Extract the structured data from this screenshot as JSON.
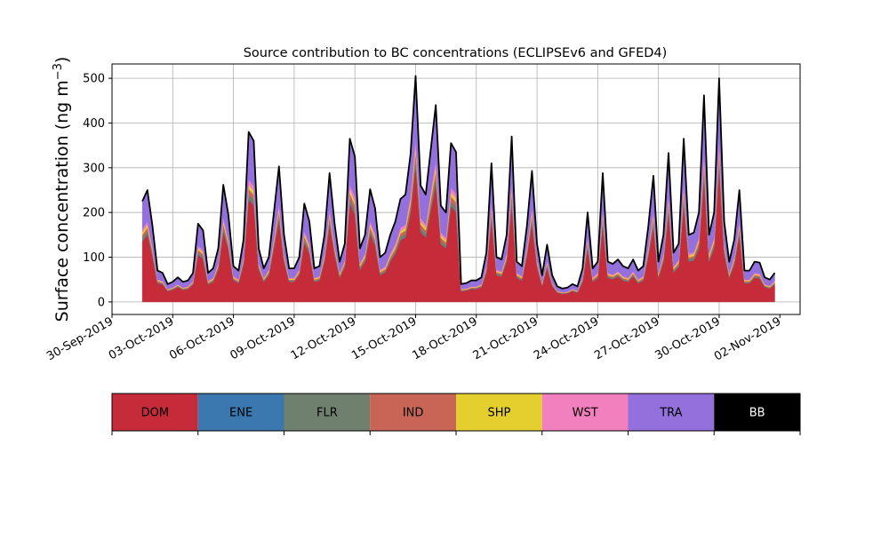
{
  "chart_data": {
    "type": "area",
    "stacked": true,
    "title": "Source contribution to BC concentrations (ECLIPSEv6 and GFED4)",
    "ylabel": "Surface concentration (ng m",
    "ylabel_sup": "−3",
    "ylabel_close": ")",
    "xlabel": "",
    "grid": true,
    "ylim": [
      -28,
      532
    ],
    "xlim": [
      "2019-09-30",
      "2019-11-03"
    ],
    "yticks": [
      0,
      100,
      200,
      300,
      400,
      500
    ],
    "xticks": [
      "30-Sep-2019",
      "03-Oct-2019",
      "06-Oct-2019",
      "09-Oct-2019",
      "12-Oct-2019",
      "15-Oct-2019",
      "18-Oct-2019",
      "21-Oct-2019",
      "24-Oct-2019",
      "27-Oct-2019",
      "30-Oct-2019",
      "02-Nov-2019"
    ],
    "total_points": [
      [
        "2019-10-01T12:00",
        225
      ],
      [
        "2019-10-01T18:00",
        250
      ],
      [
        "2019-10-02T00:00",
        170
      ],
      [
        "2019-10-02T06:00",
        70
      ],
      [
        "2019-10-02T12:00",
        65
      ],
      [
        "2019-10-02T18:00",
        40
      ],
      [
        "2019-10-03T00:00",
        45
      ],
      [
        "2019-10-03T06:00",
        55
      ],
      [
        "2019-10-03T12:00",
        45
      ],
      [
        "2019-10-03T18:00",
        48
      ],
      [
        "2019-10-04T00:00",
        65
      ],
      [
        "2019-10-04T06:00",
        175
      ],
      [
        "2019-10-04T12:00",
        160
      ],
      [
        "2019-10-04T18:00",
        65
      ],
      [
        "2019-10-05T00:00",
        75
      ],
      [
        "2019-10-05T06:00",
        120
      ],
      [
        "2019-10-05T12:00",
        262
      ],
      [
        "2019-10-05T18:00",
        195
      ],
      [
        "2019-10-06T00:00",
        80
      ],
      [
        "2019-10-06T06:00",
        70
      ],
      [
        "2019-10-06T12:00",
        140
      ],
      [
        "2019-10-06T18:00",
        380
      ],
      [
        "2019-10-07T00:00",
        360
      ],
      [
        "2019-10-07T06:00",
        120
      ],
      [
        "2019-10-07T12:00",
        75
      ],
      [
        "2019-10-07T18:00",
        100
      ],
      [
        "2019-10-08T00:00",
        200
      ],
      [
        "2019-10-08T06:00",
        303
      ],
      [
        "2019-10-08T12:00",
        150
      ],
      [
        "2019-10-08T18:00",
        75
      ],
      [
        "2019-10-09T00:00",
        75
      ],
      [
        "2019-10-09T06:00",
        100
      ],
      [
        "2019-10-09T12:00",
        220
      ],
      [
        "2019-10-09T18:00",
        180
      ],
      [
        "2019-10-10T00:00",
        75
      ],
      [
        "2019-10-10T06:00",
        80
      ],
      [
        "2019-10-10T12:00",
        150
      ],
      [
        "2019-10-10T18:00",
        288
      ],
      [
        "2019-10-11T00:00",
        175
      ],
      [
        "2019-10-11T06:00",
        90
      ],
      [
        "2019-10-11T12:00",
        130
      ],
      [
        "2019-10-11T18:00",
        365
      ],
      [
        "2019-10-12T00:00",
        325
      ],
      [
        "2019-10-12T06:00",
        120
      ],
      [
        "2019-10-12T12:00",
        150
      ],
      [
        "2019-10-12T18:00",
        252
      ],
      [
        "2019-10-13T00:00",
        210
      ],
      [
        "2019-10-13T06:00",
        100
      ],
      [
        "2019-10-13T12:00",
        110
      ],
      [
        "2019-10-13T18:00",
        150
      ],
      [
        "2019-10-14T00:00",
        180
      ],
      [
        "2019-10-14T06:00",
        230
      ],
      [
        "2019-10-14T12:00",
        240
      ],
      [
        "2019-10-14T18:00",
        330
      ],
      [
        "2019-10-15T00:00",
        505
      ],
      [
        "2019-10-15T06:00",
        260
      ],
      [
        "2019-10-15T12:00",
        240
      ],
      [
        "2019-10-15T18:00",
        340
      ],
      [
        "2019-10-16T00:00",
        440
      ],
      [
        "2019-10-16T06:00",
        215
      ],
      [
        "2019-10-16T12:00",
        200
      ],
      [
        "2019-10-16T18:00",
        355
      ],
      [
        "2019-10-17T00:00",
        335
      ],
      [
        "2019-10-17T06:00",
        40
      ],
      [
        "2019-10-17T12:00",
        42
      ],
      [
        "2019-10-17T18:00",
        48
      ],
      [
        "2019-10-18T00:00",
        48
      ],
      [
        "2019-10-18T06:00",
        55
      ],
      [
        "2019-10-18T12:00",
        110
      ],
      [
        "2019-10-18T18:00",
        310
      ],
      [
        "2019-10-19T00:00",
        100
      ],
      [
        "2019-10-19T06:00",
        95
      ],
      [
        "2019-10-19T12:00",
        150
      ],
      [
        "2019-10-19T18:00",
        370
      ],
      [
        "2019-10-20T00:00",
        90
      ],
      [
        "2019-10-20T06:00",
        80
      ],
      [
        "2019-10-20T12:00",
        170
      ],
      [
        "2019-10-20T18:00",
        293
      ],
      [
        "2019-10-21T00:00",
        130
      ],
      [
        "2019-10-21T06:00",
        60
      ],
      [
        "2019-10-21T12:00",
        128
      ],
      [
        "2019-10-21T18:00",
        60
      ],
      [
        "2019-10-22T00:00",
        35
      ],
      [
        "2019-10-22T06:00",
        30
      ],
      [
        "2019-10-22T12:00",
        32
      ],
      [
        "2019-10-22T18:00",
        40
      ],
      [
        "2019-10-23T00:00",
        35
      ],
      [
        "2019-10-23T06:00",
        75
      ],
      [
        "2019-10-23T12:00",
        200
      ],
      [
        "2019-10-23T18:00",
        75
      ],
      [
        "2019-10-24T00:00",
        90
      ],
      [
        "2019-10-24T06:00",
        288
      ],
      [
        "2019-10-24T12:00",
        90
      ],
      [
        "2019-10-24T18:00",
        85
      ],
      [
        "2019-10-25T00:00",
        95
      ],
      [
        "2019-10-25T06:00",
        80
      ],
      [
        "2019-10-25T12:00",
        75
      ],
      [
        "2019-10-25T18:00",
        95
      ],
      [
        "2019-10-26T00:00",
        70
      ],
      [
        "2019-10-26T06:00",
        80
      ],
      [
        "2019-10-26T12:00",
        170
      ],
      [
        "2019-10-26T18:00",
        282
      ],
      [
        "2019-10-27T00:00",
        90
      ],
      [
        "2019-10-27T06:00",
        150
      ],
      [
        "2019-10-27T12:00",
        333
      ],
      [
        "2019-10-27T18:00",
        110
      ],
      [
        "2019-10-28T00:00",
        130
      ],
      [
        "2019-10-28T06:00",
        365
      ],
      [
        "2019-10-28T12:00",
        150
      ],
      [
        "2019-10-28T18:00",
        155
      ],
      [
        "2019-10-29T00:00",
        200
      ],
      [
        "2019-10-29T06:00",
        462
      ],
      [
        "2019-10-29T12:00",
        150
      ],
      [
        "2019-10-29T18:00",
        200
      ],
      [
        "2019-10-30T00:00",
        500
      ],
      [
        "2019-10-30T06:00",
        180
      ],
      [
        "2019-10-30T12:00",
        90
      ],
      [
        "2019-10-30T18:00",
        140
      ],
      [
        "2019-10-31T00:00",
        250
      ],
      [
        "2019-10-31T06:00",
        70
      ],
      [
        "2019-10-31T12:00",
        70
      ],
      [
        "2019-10-31T18:00",
        90
      ],
      [
        "2019-11-01T00:00",
        88
      ],
      [
        "2019-11-01T06:00",
        55
      ],
      [
        "2019-11-01T12:00",
        50
      ],
      [
        "2019-11-01T18:00",
        65
      ]
    ],
    "fractions": {
      "DOM": 0.6,
      "ENE": 0.005,
      "FLR": 0.03,
      "IND": 0.03,
      "SHP": 0.025,
      "WST": 0.03,
      "TRA": 0.28,
      "BB": 0.0
    },
    "series": [
      {
        "name": "DOM",
        "color": "#c62b3a",
        "text_color": "#000000"
      },
      {
        "name": "ENE",
        "color": "#3b78b0",
        "text_color": "#000000"
      },
      {
        "name": "FLR",
        "color": "#6f806f",
        "text_color": "#000000"
      },
      {
        "name": "IND",
        "color": "#c96556",
        "text_color": "#000000"
      },
      {
        "name": "SHP",
        "color": "#e5cf2f",
        "text_color": "#000000"
      },
      {
        "name": "WST",
        "color": "#f27fbe",
        "text_color": "#000000"
      },
      {
        "name": "TRA",
        "color": "#9370db",
        "text_color": "#000000"
      },
      {
        "name": "BB",
        "color": "#000000",
        "text_color": "#ffffff"
      }
    ],
    "legend": {
      "placement": "bottom",
      "style": "colorbar"
    }
  }
}
